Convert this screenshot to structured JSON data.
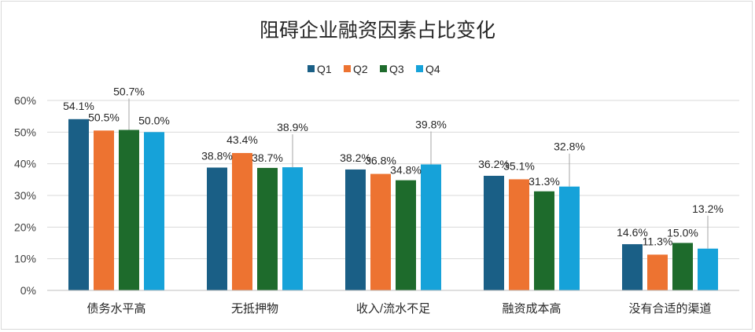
{
  "chart_data": {
    "type": "bar",
    "title": "阻碍企业融资因素占比变化",
    "xlabel": "",
    "ylabel": "",
    "ylim": [
      0,
      60
    ],
    "yticks": [
      "0%",
      "10%",
      "20%",
      "30%",
      "40%",
      "50%",
      "60%"
    ],
    "grid": true,
    "legend_position": "top",
    "categories": [
      "债务水平高",
      "无抵押物",
      "收入/流水不足",
      "融资成本高",
      "没有合适的渠道"
    ],
    "series": [
      {
        "name": "Q1",
        "color": "#1a5f86",
        "values": [
          54.1,
          38.8,
          38.2,
          36.2,
          14.6
        ],
        "labels": [
          "54.1%",
          "38.8%",
          "38.2%",
          "36.2%",
          "14.6%"
        ]
      },
      {
        "name": "Q2",
        "color": "#ed7331",
        "values": [
          50.5,
          43.4,
          36.8,
          35.1,
          11.3
        ],
        "labels": [
          "50.5%",
          "43.4%",
          "36.8%",
          "35.1%",
          "11.3%"
        ]
      },
      {
        "name": "Q3",
        "color": "#1e6b2c",
        "values": [
          50.7,
          38.7,
          34.8,
          31.3,
          15.0
        ],
        "labels": [
          "50.7%",
          "38.7%",
          "34.8%",
          "31.3%",
          "15.0%"
        ]
      },
      {
        "name": "Q4",
        "color": "#16a2d9",
        "values": [
          50.0,
          38.9,
          39.8,
          32.8,
          13.2
        ],
        "labels": [
          "50.0%",
          "38.9%",
          "39.8%",
          "32.8%",
          "13.2%"
        ]
      }
    ]
  }
}
